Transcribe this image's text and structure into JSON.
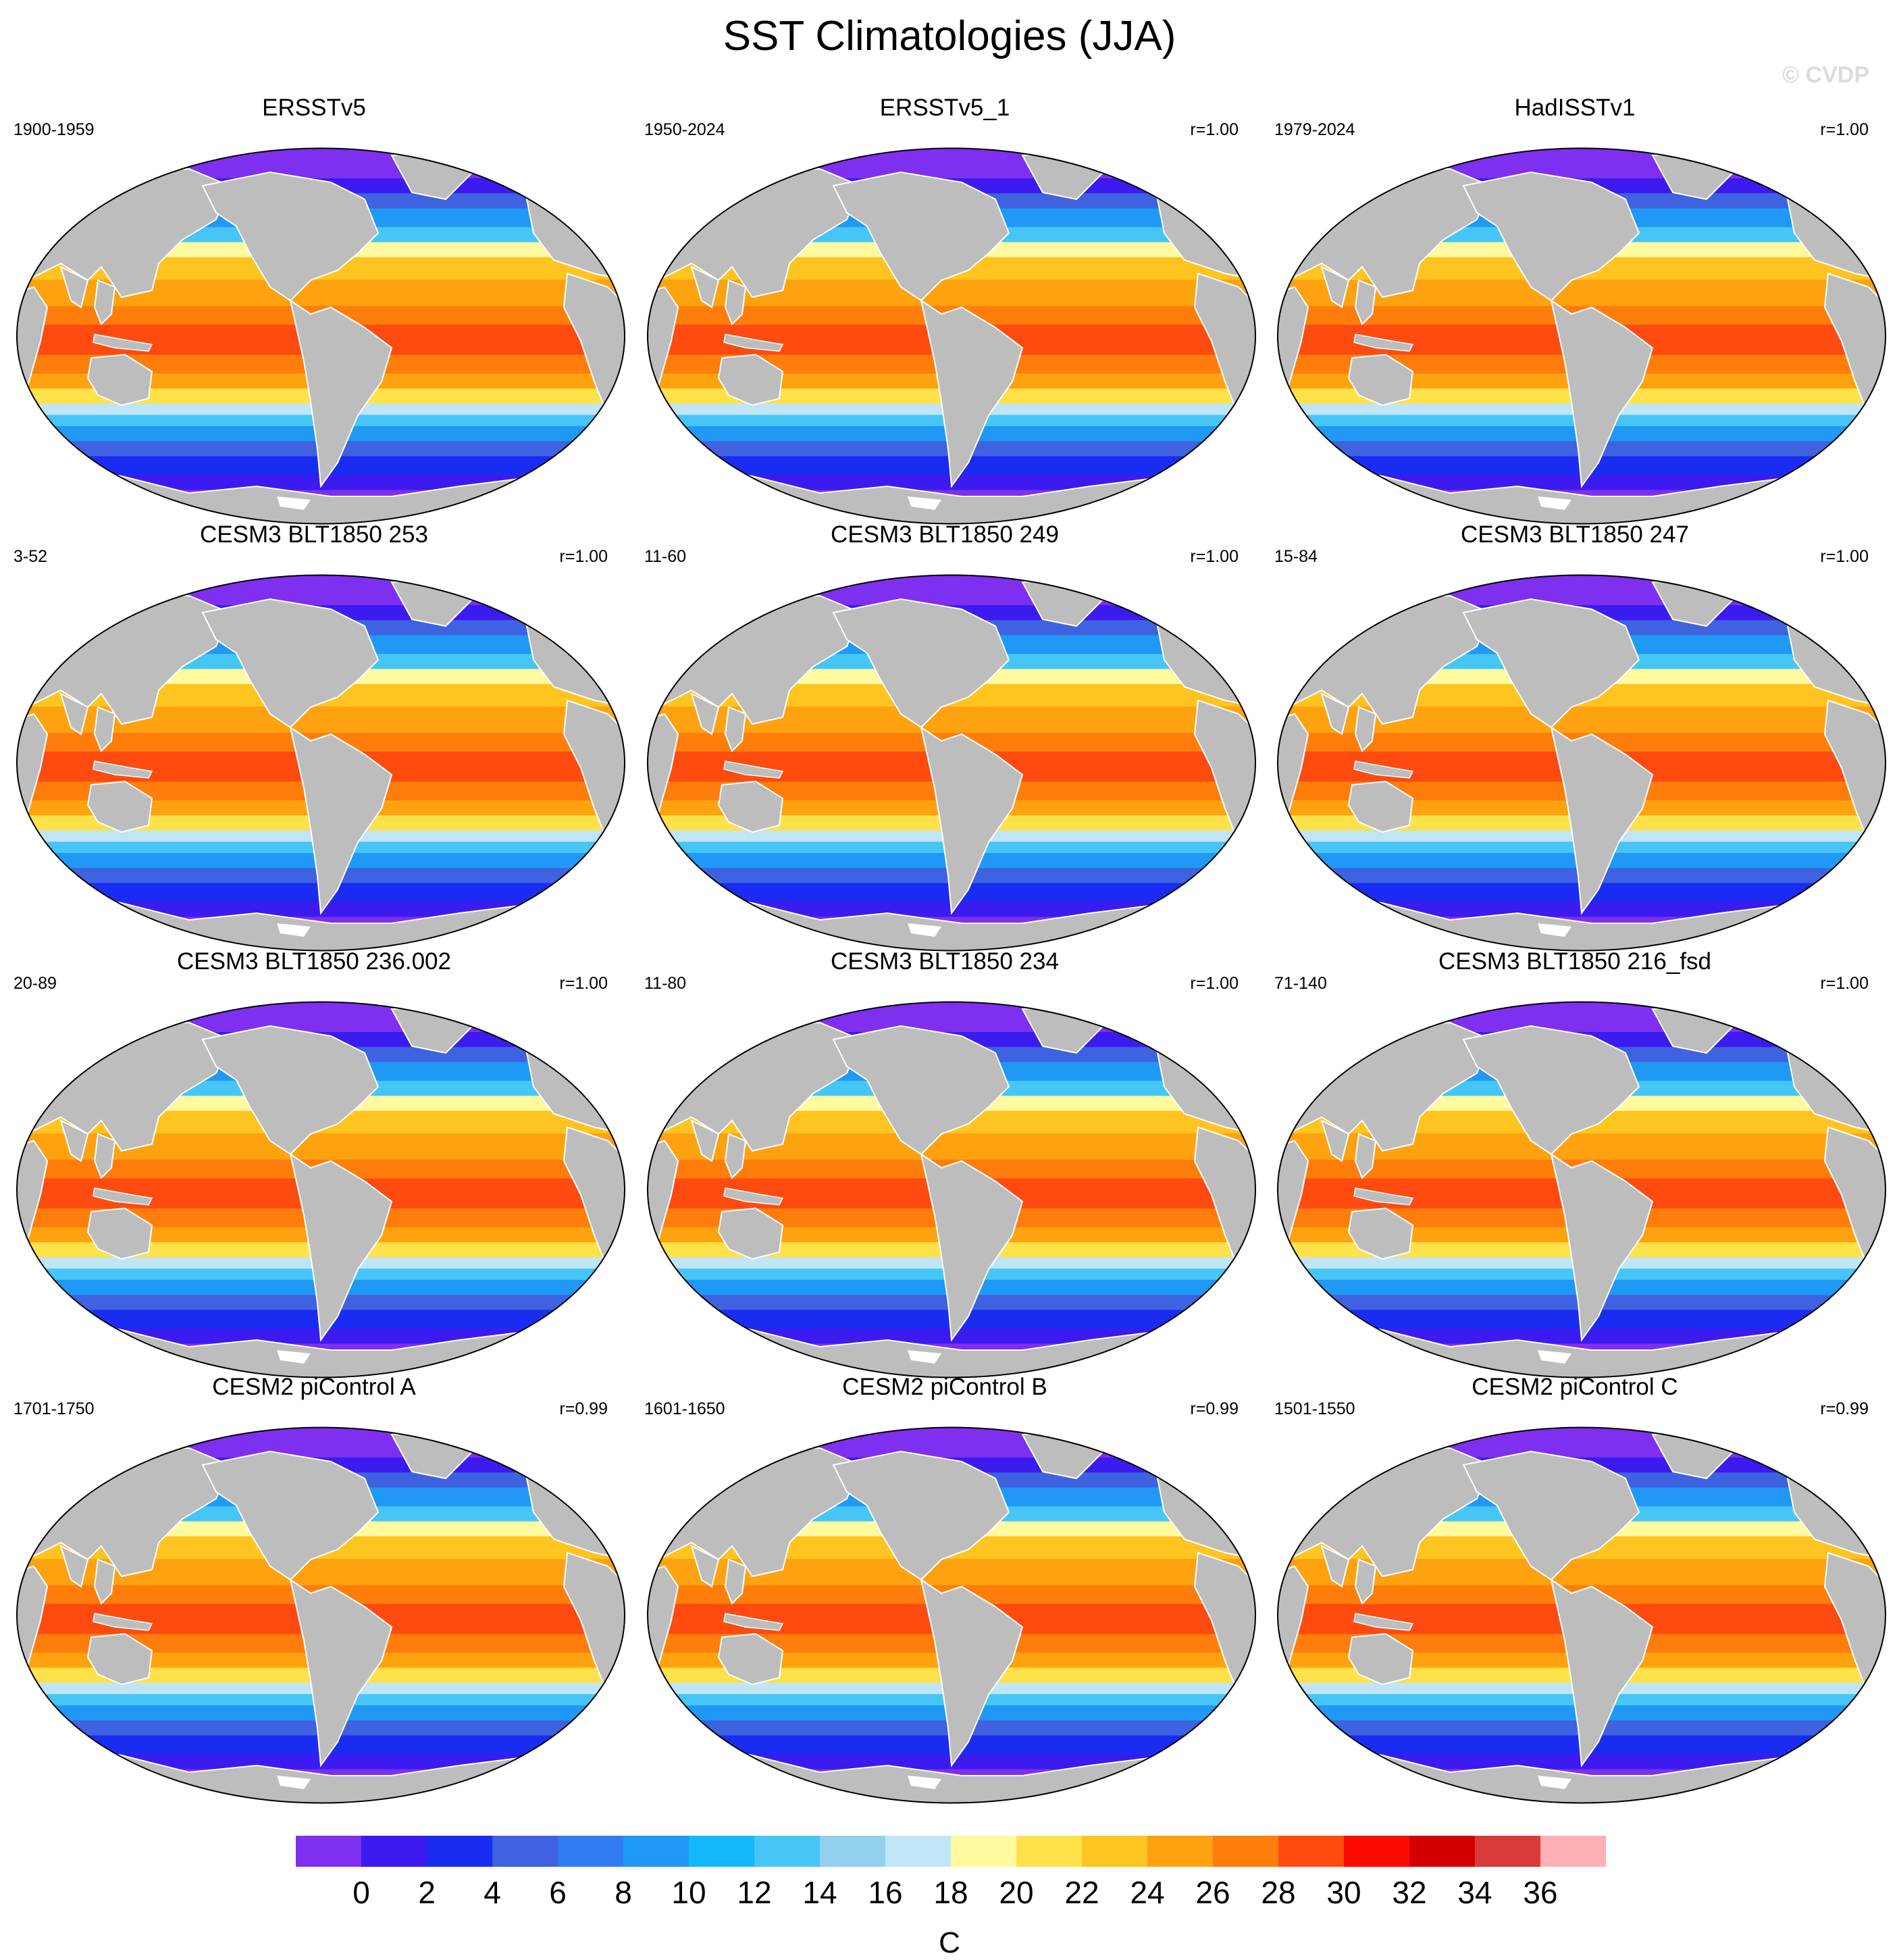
{
  "title": "SST Climatologies (JJA)",
  "credit": "© CVDP",
  "panels": [
    {
      "title": "ERSSTv5",
      "period": "1900-1959",
      "r": ""
    },
    {
      "title": "ERSSTv5_1",
      "period": "1950-2024",
      "r": "r=1.00"
    },
    {
      "title": "HadISSTv1",
      "period": "1979-2024",
      "r": "r=1.00"
    },
    {
      "title": "CESM3 BLT1850 253",
      "period": "3-52",
      "r": "r=1.00"
    },
    {
      "title": "CESM3 BLT1850 249",
      "period": "11-60",
      "r": "r=1.00"
    },
    {
      "title": "CESM3 BLT1850 247",
      "period": "15-84",
      "r": "r=1.00"
    },
    {
      "title": "CESM3 BLT1850 236.002",
      "period": "20-89",
      "r": "r=1.00"
    },
    {
      "title": "CESM3 BLT1850 234",
      "period": "11-80",
      "r": "r=1.00"
    },
    {
      "title": "CESM3 BLT1850 216_fsd",
      "period": "71-140",
      "r": "r=1.00"
    },
    {
      "title": "CESM2 piControl A",
      "period": "1701-1750",
      "r": "r=0.99"
    },
    {
      "title": "CESM2 piControl B",
      "period": "1601-1650",
      "r": "r=0.99"
    },
    {
      "title": "CESM2 piControl C",
      "period": "1501-1550",
      "r": "r=0.99"
    }
  ],
  "colorbar": {
    "units": "C",
    "labels": [
      "0",
      "2",
      "4",
      "6",
      "8",
      "10",
      "12",
      "14",
      "16",
      "18",
      "20",
      "22",
      "24",
      "26",
      "28",
      "30",
      "32",
      "34",
      "36"
    ],
    "colors": [
      "#7f2fef",
      "#3b1bf0",
      "#1a2cf2",
      "#3e62e0",
      "#2f7df0",
      "#1f99f5",
      "#13b8f8",
      "#46c6f6",
      "#93d0ee",
      "#bfe5f7",
      "#fff9a0",
      "#ffe14a",
      "#ffc420",
      "#ffa210",
      "#ff7d0b",
      "#ff4a10",
      "#ff0a00",
      "#d40000",
      "#d93a3a",
      "#ffb0b4"
    ]
  },
  "colors": {
    "land": "#bdbdbd",
    "ocean_ice": "#7a3fff"
  }
}
